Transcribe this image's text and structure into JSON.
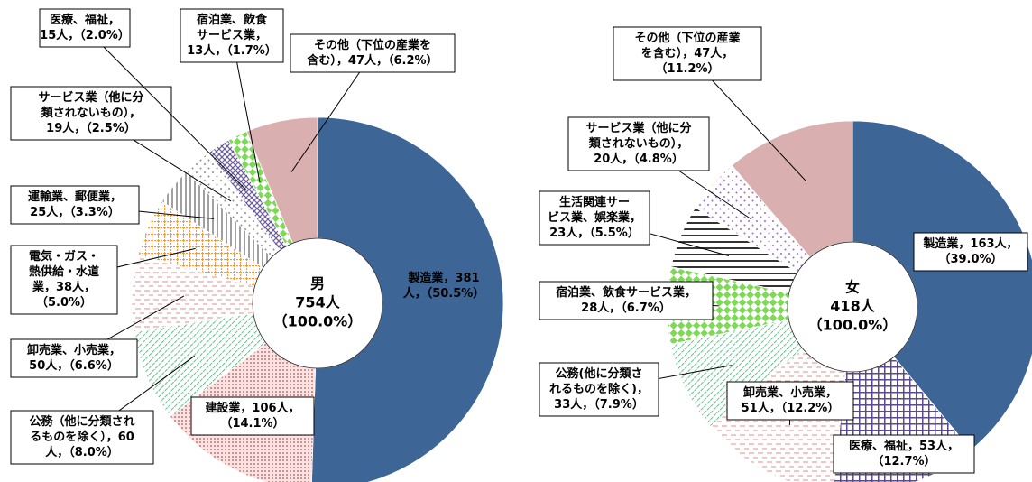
{
  "chart_data": [
    {
      "type": "pie",
      "center_label": [
        "男",
        "754人",
        "（100.0%）"
      ],
      "categories": [
        "製造業",
        "建設業",
        "公務（他に分類されるものを除く）",
        "卸売業、小売業",
        "電気・ガス・熱供給・水道業",
        "運輸業、郵便業",
        "サービス業（他に分類されないもの）",
        "医療、福祉",
        "宿泊業、飲食サービス業",
        "その他（下位の産業を含む）"
      ],
      "values": [
        381,
        106,
        60,
        50,
        38,
        25,
        19,
        15,
        13,
        47
      ],
      "value_labels": [
        [
          "製造業，381",
          "人，（50.5%）"
        ],
        [
          "建設業，106人，",
          "（14.1%）"
        ],
        [
          "公務（他に分類され",
          "るものを除く），60",
          "人，（8.0%）"
        ],
        [
          "卸売業、小売業，",
          "50人，（6.6%）"
        ],
        [
          "電気・ガス・",
          "熱供給・水道",
          "業，38人，",
          "（5.0%）"
        ],
        [
          "運輸業、郵便業，",
          "25人，（3.3%）"
        ],
        [
          "サービス業（他に分",
          "類されないもの），",
          "19人，（2.5%）"
        ],
        [
          "医療、福祉，",
          "15人，（2.0%）"
        ],
        [
          "宿泊業、飲食",
          "サービス業，",
          "13人，（1.7%）"
        ],
        [
          "その他（下位の産業を",
          "含む），47人，（6.2%）"
        ]
      ],
      "colors": [
        "#3d6596",
        "#c0504d",
        "#3cb371",
        "#e6a0a0",
        "#f59a3c",
        "#808080",
        "#8c8c8c",
        "#6a5a9a",
        "#7ed957",
        "#d9afaf"
      ],
      "patterns": [
        "solid",
        "dots",
        "diagonal",
        "dashes",
        "grid",
        "vertical",
        "sparse-dots",
        "crosshatch",
        "checker",
        "solid"
      ]
    },
    {
      "type": "pie",
      "center_label": [
        "女",
        "418人",
        "（100.0%）"
      ],
      "categories": [
        "製造業",
        "医療、福祉",
        "卸売業、小売業",
        "公務（他に分類されるものを除く）",
        "宿泊業、飲食サービス業",
        "生活関連サービス業、娯楽業",
        "サービス業（他に分類されないもの）",
        "その他（下位の産業を含む）"
      ],
      "values": [
        163,
        53,
        51,
        33,
        28,
        23,
        20,
        47
      ],
      "value_labels": [
        [
          "製造業，163人，",
          "（39.0%）"
        ],
        [
          "医療、福祉，53人，",
          "（12.7%）"
        ],
        [
          "卸売業、小売業，",
          "51人，（12.2%）"
        ],
        [
          "公務(他に分類さ",
          "れるものを除く)，",
          "33人，（7.9%）"
        ],
        [
          "宿泊業、飲食サービス業，",
          "28人，（6.7%）"
        ],
        [
          "生活関連サー",
          "ビス業、娯楽業，",
          "23人，（5.5%）"
        ],
        [
          "サービス業（他に分",
          "類されないもの），",
          "20人，（4.8%）"
        ],
        [
          "その他（下位の産業",
          "を含む），47人，",
          "（11.2%）"
        ]
      ],
      "colors": [
        "#3d6596",
        "#5b4a8a",
        "#e6a0a0",
        "#3cb371",
        "#7ed957",
        "#333333",
        "#9a6bc9",
        "#d9afaf"
      ],
      "patterns": [
        "solid",
        "grid-dark",
        "dashes",
        "diagonal",
        "checker",
        "horizontal",
        "sparse-dots",
        "solid"
      ]
    }
  ]
}
